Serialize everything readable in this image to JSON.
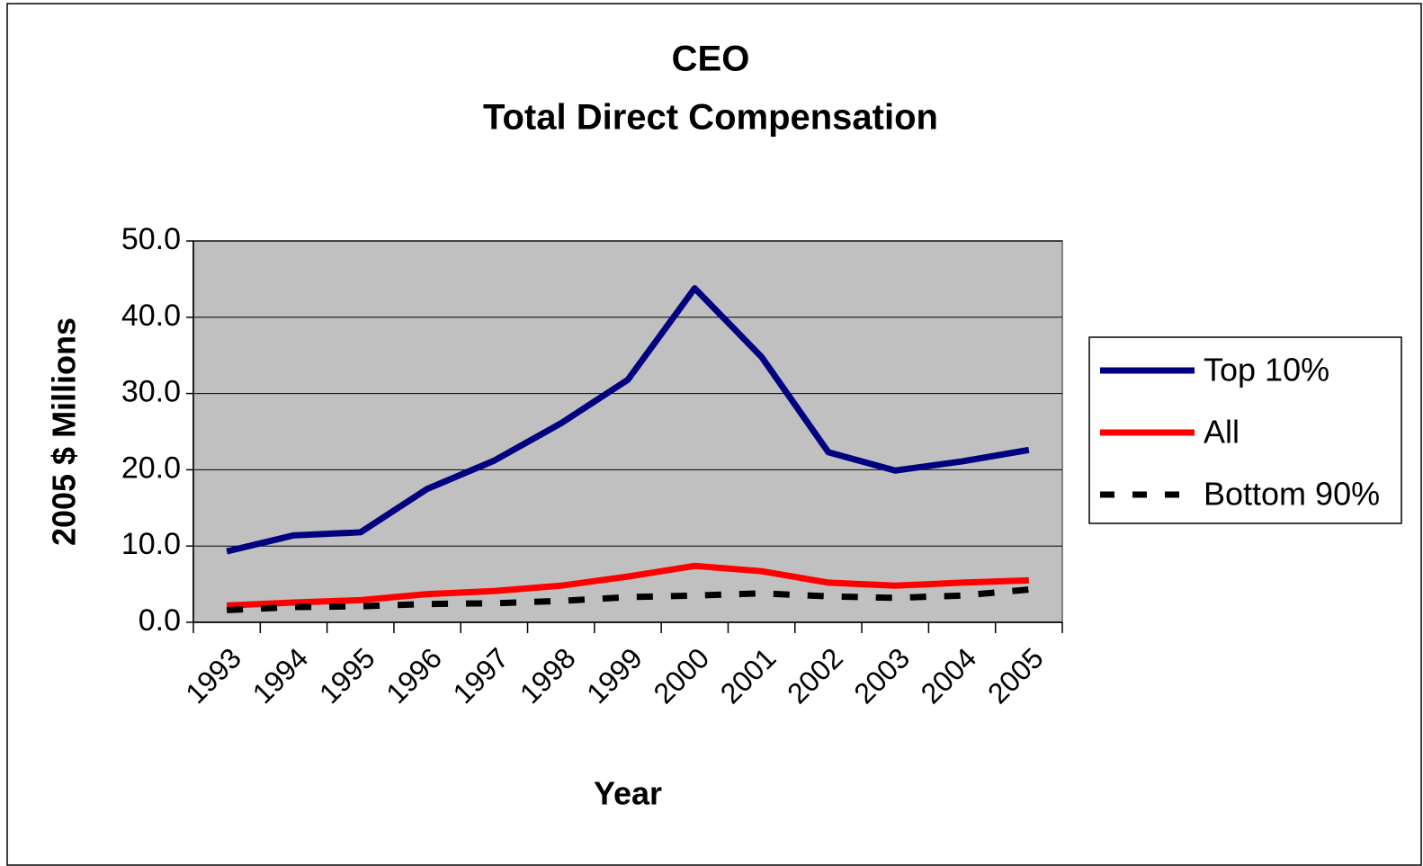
{
  "chart_data": {
    "type": "line",
    "title": "CEO",
    "subtitle": "Total Direct Compensation",
    "xlabel": "Year",
    "ylabel": "2005 $ Millions",
    "categories": [
      "1993",
      "1994",
      "1995",
      "1996",
      "1997",
      "1998",
      "1999",
      "2000",
      "2001",
      "2002",
      "2003",
      "2004",
      "2005"
    ],
    "series": [
      {
        "name": "Top 10%",
        "color": "#000080",
        "style": "solid",
        "values": [
          9.3,
          11.4,
          11.8,
          17.5,
          21.2,
          26.1,
          31.8,
          43.8,
          34.8,
          22.3,
          19.9,
          21.1,
          22.6
        ]
      },
      {
        "name": "All",
        "color": "#ff0000",
        "style": "solid",
        "values": [
          2.2,
          2.6,
          2.9,
          3.7,
          4.1,
          4.8,
          6.0,
          7.4,
          6.7,
          5.2,
          4.8,
          5.2,
          5.5
        ]
      },
      {
        "name": "Bottom 90%",
        "color": "#000000",
        "style": "dashed",
        "values": [
          1.6,
          2.0,
          2.1,
          2.4,
          2.5,
          2.8,
          3.3,
          3.5,
          3.8,
          3.4,
          3.2,
          3.5,
          4.3
        ]
      }
    ],
    "ylim": [
      0,
      50
    ],
    "yticks": [
      {
        "value": 0,
        "label": "0.0"
      },
      {
        "value": 10,
        "label": "10.0"
      },
      {
        "value": 20,
        "label": "20.0"
      },
      {
        "value": 30,
        "label": "30.0"
      },
      {
        "value": 40,
        "label": "40.0"
      },
      {
        "value": 50,
        "label": "50.0"
      }
    ],
    "grid": true,
    "plot_background": "#c0c0c0",
    "legend": "right"
  }
}
